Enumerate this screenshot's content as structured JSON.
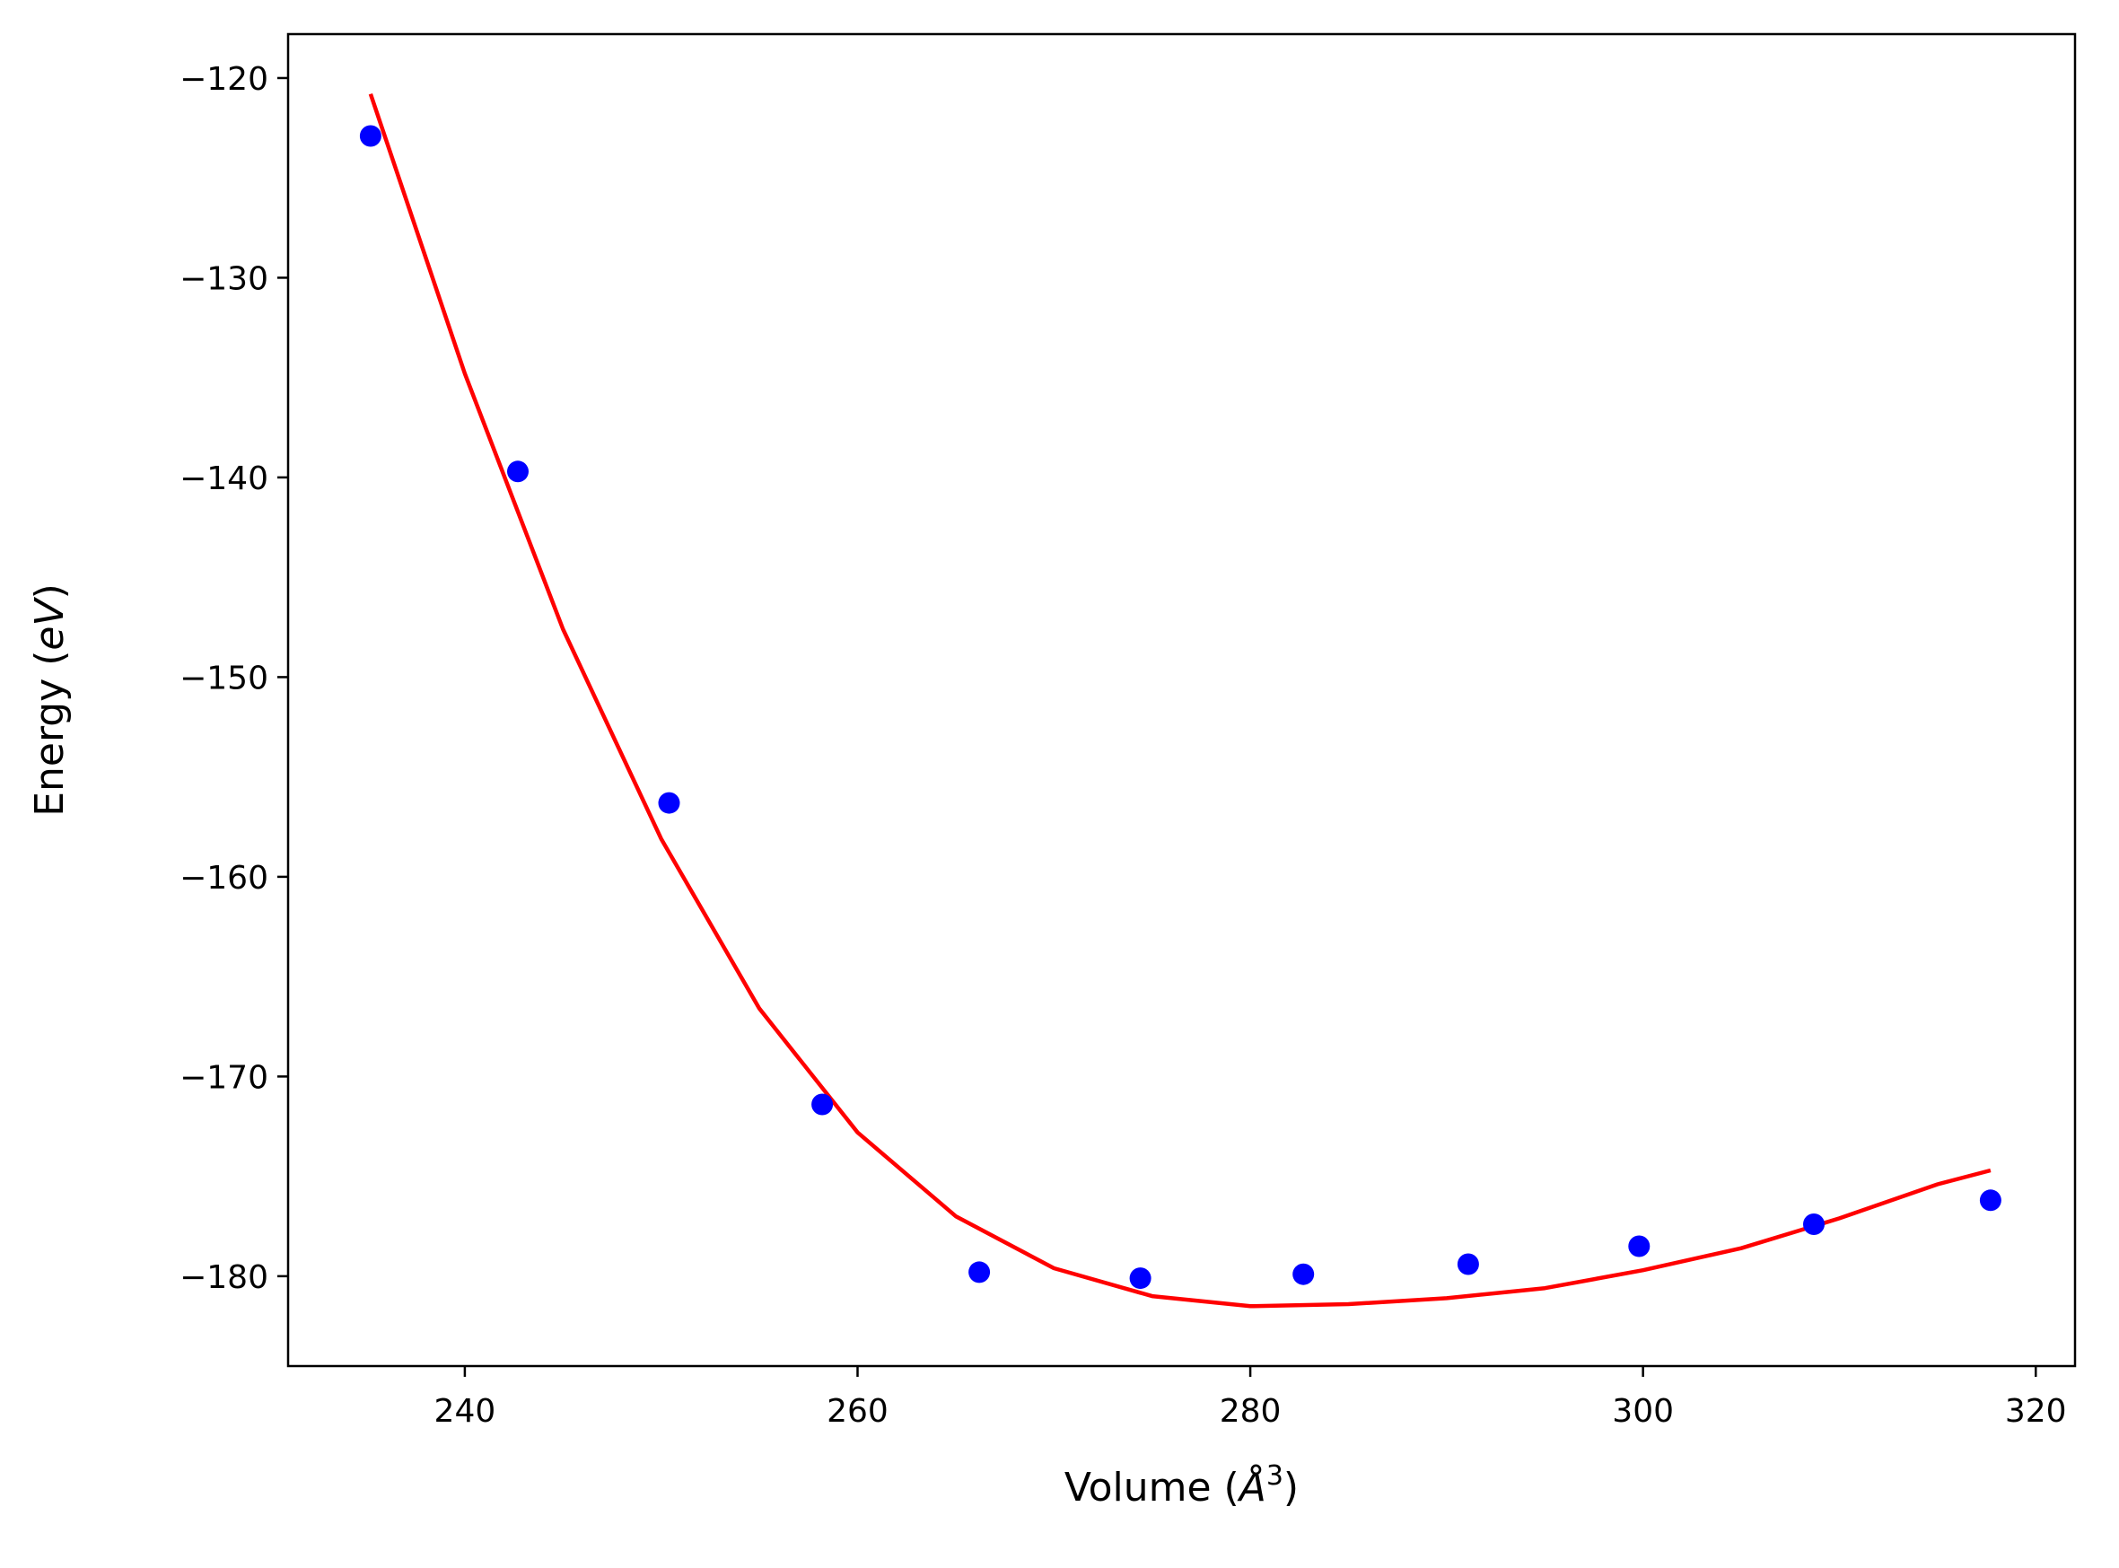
{
  "chart_data": {
    "type": "scatter",
    "xlabel": {
      "pre": "Volume (",
      "sym": "Å",
      "sup": "3",
      "post": ")"
    },
    "ylabel": {
      "pre": "Energy (",
      "sym": "eV",
      "post": ")"
    },
    "xlim": [
      231,
      322
    ],
    "ylim": [
      -184.5,
      -117.8
    ],
    "xticks": [
      240,
      260,
      280,
      300,
      320
    ],
    "yticks": [
      -120,
      -130,
      -140,
      -150,
      -160,
      -170,
      -180
    ],
    "grid": false,
    "series": [
      {
        "kind": "points",
        "color": "#0000ff",
        "x": [
          235.2,
          242.7,
          250.4,
          258.2,
          266.2,
          274.4,
          282.7,
          291.1,
          299.8,
          308.7,
          317.7
        ],
        "y": [
          -122.9,
          -139.7,
          -156.3,
          -171.4,
          -179.8,
          -180.1,
          -179.9,
          -179.4,
          -178.5,
          -177.4,
          -176.2
        ]
      },
      {
        "kind": "fit",
        "color": "#ff0000",
        "x": [
          235.2,
          240,
          245,
          250,
          255,
          260,
          265,
          270,
          275,
          280,
          285,
          290,
          295,
          300,
          305,
          310,
          315,
          317.7
        ],
        "y": [
          -120.8,
          -134.8,
          -147.6,
          -158.1,
          -166.6,
          -172.8,
          -177.0,
          -179.6,
          -181.0,
          -181.5,
          -181.4,
          -181.1,
          -180.6,
          -179.7,
          -178.6,
          -177.1,
          -175.4,
          -174.7
        ]
      }
    ]
  }
}
